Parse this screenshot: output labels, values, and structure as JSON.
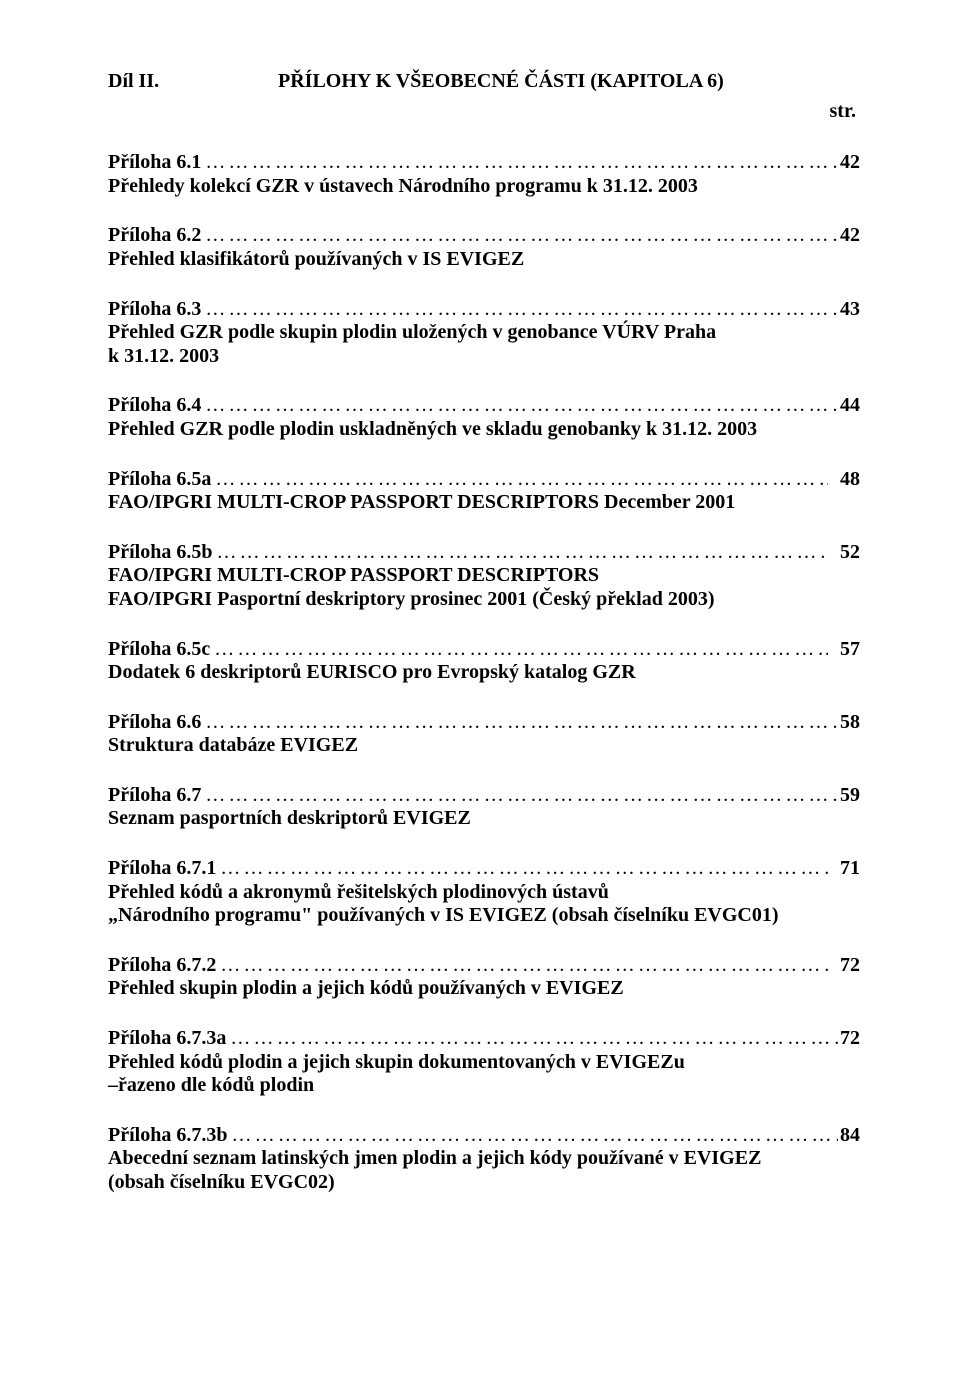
{
  "header": {
    "left": "Díl II.",
    "right": "PŘÍLOHY K VŠEOBECNÉ ČÁSTI  (KAPITOLA 6)",
    "str": "str."
  },
  "entries": [
    {
      "title": "Příloha 6.1",
      "page": "42",
      "desc": [
        "Přehledy kolekcí GZR v ústavech Národního programu  k 31.12. 2003"
      ]
    },
    {
      "title": "Příloha 6.2",
      "page": "42",
      "desc": [
        "Přehled klasifikátorů používaných v IS EVIGEZ"
      ]
    },
    {
      "title": "Příloha 6.3",
      "page": "43",
      "desc": [
        "Přehled GZR podle skupin plodin uložených v genobance VÚRV Praha",
        "k 31.12. 2003"
      ]
    },
    {
      "title": "Příloha 6.4",
      "page": "44",
      "desc": [
        "Přehled GZR podle plodin uskladněných ve skladu genobanky k 31.12. 2003"
      ]
    },
    {
      "title": "Příloha 6.5a",
      "page": "48",
      "desc": [
        "FAO/IPGRI MULTI-CROP PASSPORT DESCRIPTORS December 2001"
      ],
      "spaced": true
    },
    {
      "title": "Příloha 6.5b",
      "page": "52",
      "desc": [
        "FAO/IPGRI MULTI-CROP PASSPORT DESCRIPTORS",
        "FAO/IPGRI Pasportní deskriptory prosinec 2001 (Český překlad 2003)"
      ],
      "spaced": true
    },
    {
      "title": "Příloha 6.5c",
      "page": "57",
      "desc": [
        "Dodatek 6  deskriptorů  EURISCO pro Evropský katalog GZR"
      ],
      "spaced": true
    },
    {
      "title": "Příloha 6.6",
      "page": "58",
      "desc": [
        "Struktura databáze EVIGEZ"
      ]
    },
    {
      "title": "Příloha 6.7",
      "page": "59",
      "desc": [
        "Seznam pasportních deskriptorů EVIGEZ"
      ]
    },
    {
      "title": "Příloha 6.7.1",
      "page": "71",
      "desc": [
        "Přehled kódů a akronymů řešitelských plodinových ústavů",
        "„Národního programu\"  používaných v IS EVIGEZ  (obsah číselníku EVGC01)"
      ],
      "spaced": true
    },
    {
      "title": "Příloha 6.7.2",
      "page": "72",
      "desc": [
        "Přehled skupin plodin a jejich kódů používaných v EVIGEZ"
      ],
      "spaced": true
    },
    {
      "title": "Příloha 6.7.3a",
      "page": "72",
      "desc": [
        "Přehled kódů plodin a jejich skupin dokumentovaných v EVIGEZu",
        "–řazeno dle kódů plodin"
      ]
    },
    {
      "title": "Příloha 6.7.3b",
      "page": "84",
      "desc": [
        "Abecední seznam latinských jmen plodin a jejich kódy používané v EVIGEZ",
        "(obsah číselníku EVGC02)"
      ]
    }
  ]
}
